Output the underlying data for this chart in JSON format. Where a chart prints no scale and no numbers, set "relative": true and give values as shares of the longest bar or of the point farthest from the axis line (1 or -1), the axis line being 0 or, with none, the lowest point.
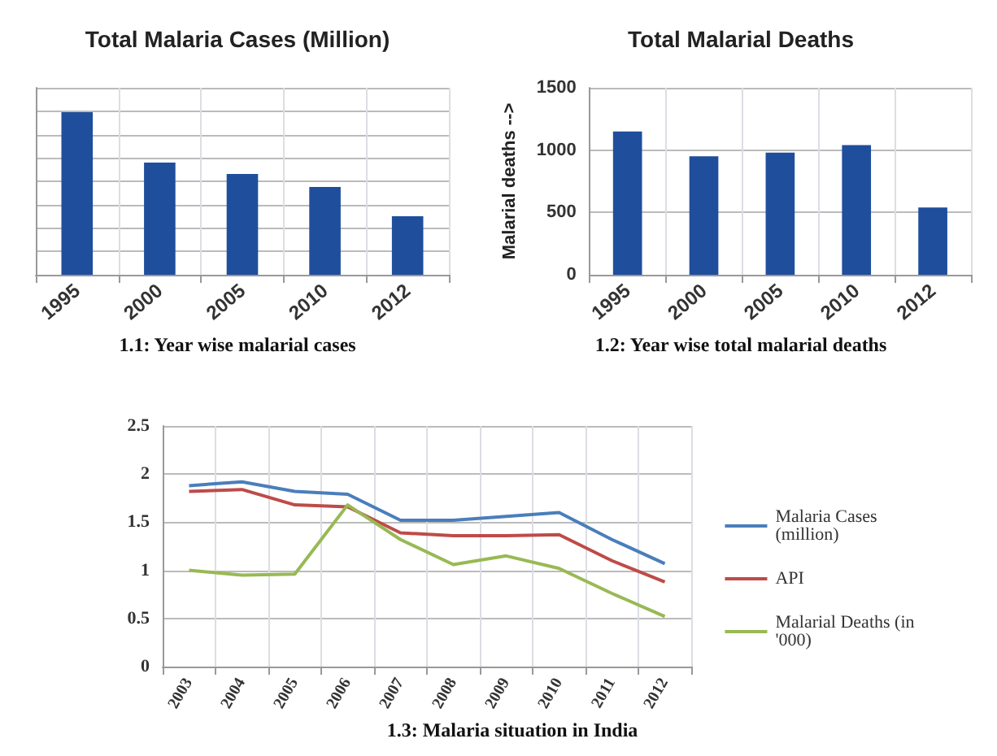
{
  "chart_data": [
    {
      "type": "bar",
      "title": "Total Malaria Cases (Million)",
      "categories": [
        "1995",
        "2000",
        "2005",
        "2010",
        "2012"
      ],
      "relative": true,
      "values": [
        1,
        0.69,
        0.62,
        0.54,
        0.36
      ],
      "color": "#1f4e9c",
      "grid": true,
      "annotations": [
        "1.1: Year wise malarial cases"
      ]
    },
    {
      "type": "bar",
      "title": "Total Malarial Deaths",
      "ylabel": "Malarial deaths -->",
      "categories": [
        "1995",
        "2000",
        "2005",
        "2010",
        "2012"
      ],
      "values": [
        1150,
        950,
        980,
        1040,
        540
      ],
      "color": "#1f4e9c",
      "ylim": [
        0,
        1500
      ],
      "yticks": [
        0,
        500,
        1000,
        1500
      ],
      "grid": true,
      "annotations": [
        "1.2: Year wise total malarial deaths"
      ]
    },
    {
      "type": "line",
      "categories": [
        "2003",
        "2004",
        "2005",
        "2006",
        "2007",
        "2008",
        "2009",
        "2010",
        "2011",
        "2012"
      ],
      "ylim": [
        0,
        2.5
      ],
      "yticks": [
        0,
        0.5,
        1,
        1.5,
        2,
        2.5
      ],
      "grid": true,
      "legend": "right",
      "annotations": [
        "1.3: Malaria situation in India"
      ],
      "series": [
        {
          "name": "Malaria Cases (million)",
          "color": "#4a7ebb",
          "values": [
            1.88,
            1.92,
            1.82,
            1.79,
            1.52,
            1.52,
            1.56,
            1.6,
            1.32,
            1.07
          ]
        },
        {
          "name": "API",
          "color": "#be4b48",
          "values": [
            1.82,
            1.84,
            1.68,
            1.66,
            1.39,
            1.36,
            1.36,
            1.37,
            1.1,
            0.88
          ]
        },
        {
          "name": "Malarial Deaths (in '000)",
          "color": "#98b954",
          "values": [
            1.0,
            0.95,
            0.96,
            1.68,
            1.32,
            1.06,
            1.15,
            1.02,
            0.76,
            0.52
          ]
        }
      ]
    }
  ]
}
